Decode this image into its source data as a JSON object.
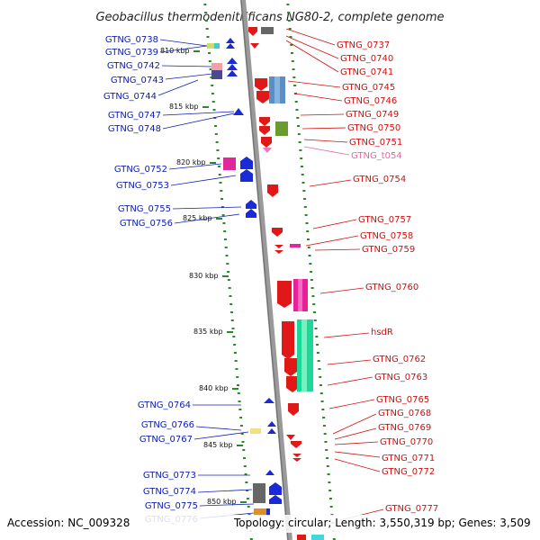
{
  "title": "Geobacillus thermodenitrificans NG80-2, complete genome",
  "accession": "Accession: NC_009328",
  "topology": "Topology: circular; Length: 3,550,319 bp; Genes: 3,509",
  "colors": {
    "backbone": "#999999",
    "tick": "#2a8a2a",
    "left_label": "#1020b0",
    "right_label": "#d01010",
    "trna_label": "#e06aa8"
  },
  "kbp_ticks": [
    {
      "label": "810 kbp",
      "pos": 810
    },
    {
      "label": "815 kbp",
      "pos": 815
    },
    {
      "label": "820 kbp",
      "pos": 820
    },
    {
      "label": "825 kbp",
      "pos": 825
    },
    {
      "label": "830 kbp",
      "pos": 830
    },
    {
      "label": "835 kbp",
      "pos": 835
    },
    {
      "label": "840 kbp",
      "pos": 840
    },
    {
      "label": "845 kbp",
      "pos": 845
    },
    {
      "label": "850 kbp",
      "pos": 850
    }
  ],
  "left_labels": [
    "GTNG_0738",
    "GTNG_0739",
    "GTNG_0742",
    "GTNG_0743",
    "GTNG_0744",
    "GTNG_0747",
    "GTNG_0748",
    "GTNG_0752",
    "GTNG_0753",
    "GTNG_0755",
    "GTNG_0756",
    "GTNG_0764",
    "GTNG_0766",
    "GTNG_0767",
    "GTNG_0773",
    "GTNG_0774",
    "GTNG_0775",
    "GTNG_0776"
  ],
  "right_labels": [
    "GTNG_0737",
    "GTNG_0740",
    "GTNG_0741",
    "GTNG_0745",
    "GTNG_0746",
    "GTNG_0749",
    "GTNG_0750",
    "GTNG_0751",
    "GTNG_t054",
    "GTNG_0754",
    "GTNG_0757",
    "GTNG_0758",
    "GTNG_0759",
    "GTNG_0760",
    "hsdR",
    "GTNG_0762",
    "GTNG_0763",
    "GTNG_0765",
    "GTNG_0768",
    "GTNG_0769",
    "GTNG_0770",
    "GTNG_0771",
    "GTNG_0772",
    "GTNG_0777"
  ]
}
